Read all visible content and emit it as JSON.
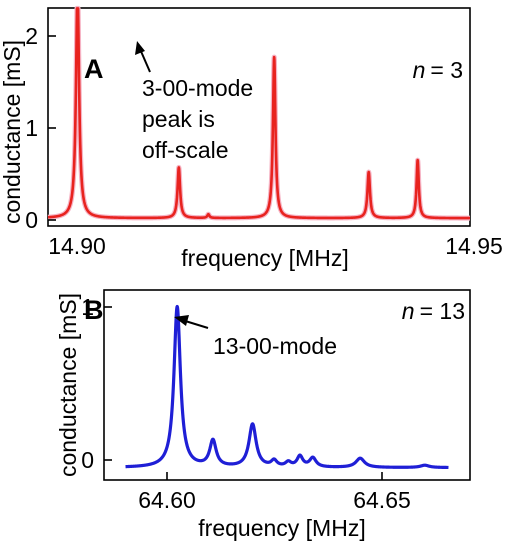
{
  "chart_data": [
    {
      "panel": "A",
      "type": "line",
      "xlabel": "frequency [MHz]",
      "ylabel": "conductance [mS]",
      "xlim": [
        14.9,
        14.95
      ],
      "ylim": [
        -0.12,
        2.3
      ],
      "xticks": [
        14.9,
        14.95
      ],
      "xtick_labels": [
        "14.90",
        "14.95"
      ],
      "yticks": [
        0,
        1,
        2
      ],
      "ytick_labels": [
        "0",
        "1",
        "2"
      ],
      "grid": false,
      "series": [
        {
          "color": "#e8231f",
          "fill_color": "#f6b3c4",
          "baseline": 0.02,
          "peaks": [
            {
              "x": 14.9035,
              "height": 2.5,
              "width": 0.00022
            },
            {
              "x": 14.9155,
              "height": 0.55,
              "width": 0.00018
            },
            {
              "x": 14.919,
              "height": 0.04,
              "width": 0.00015
            },
            {
              "x": 14.9268,
              "height": 1.75,
              "width": 0.00018
            },
            {
              "x": 14.938,
              "height": 0.5,
              "width": 0.00018
            },
            {
              "x": 14.9438,
              "height": 0.63,
              "width": 0.00016
            }
          ]
        }
      ],
      "n_label": {
        "prefix": "n",
        "value": "= 3"
      },
      "annotation": [
        "3-00-mode",
        "peak is",
        "off-scale"
      ]
    },
    {
      "panel": "B",
      "type": "line",
      "xlabel": "frequency [MHz]",
      "ylabel": "conductance [mS]",
      "xlim": [
        64.583,
        64.668
      ],
      "ylim": [
        -0.05,
        1.1
      ],
      "xticks": [
        64.6,
        64.65
      ],
      "xtick_labels": [
        "64.60",
        "64.65"
      ],
      "yticks": [
        0,
        1
      ],
      "ytick_labels": [
        "0",
        "1"
      ],
      "grid": false,
      "series": [
        {
          "color": "#1f1fd6",
          "x_range": [
            64.588,
            64.663
          ],
          "baseline": -0.05,
          "peaks": [
            {
              "x": 64.6,
              "height": 1.05,
              "width": 0.0009
            },
            {
              "x": 64.6083,
              "height": 0.17,
              "width": 0.0009
            },
            {
              "x": 64.6175,
              "height": 0.28,
              "width": 0.001
            },
            {
              "x": 64.6225,
              "height": 0.04,
              "width": 0.0008
            },
            {
              "x": 64.6258,
              "height": 0.03,
              "width": 0.0008
            },
            {
              "x": 64.6285,
              "height": 0.07,
              "width": 0.0008
            },
            {
              "x": 64.6315,
              "height": 0.06,
              "width": 0.0009
            },
            {
              "x": 64.6425,
              "height": 0.06,
              "width": 0.0012
            },
            {
              "x": 64.6575,
              "height": 0.015,
              "width": 0.0012
            }
          ]
        }
      ],
      "n_label": {
        "prefix": "n",
        "value": "= 13"
      },
      "annotation": [
        "13-00-mode"
      ]
    }
  ]
}
